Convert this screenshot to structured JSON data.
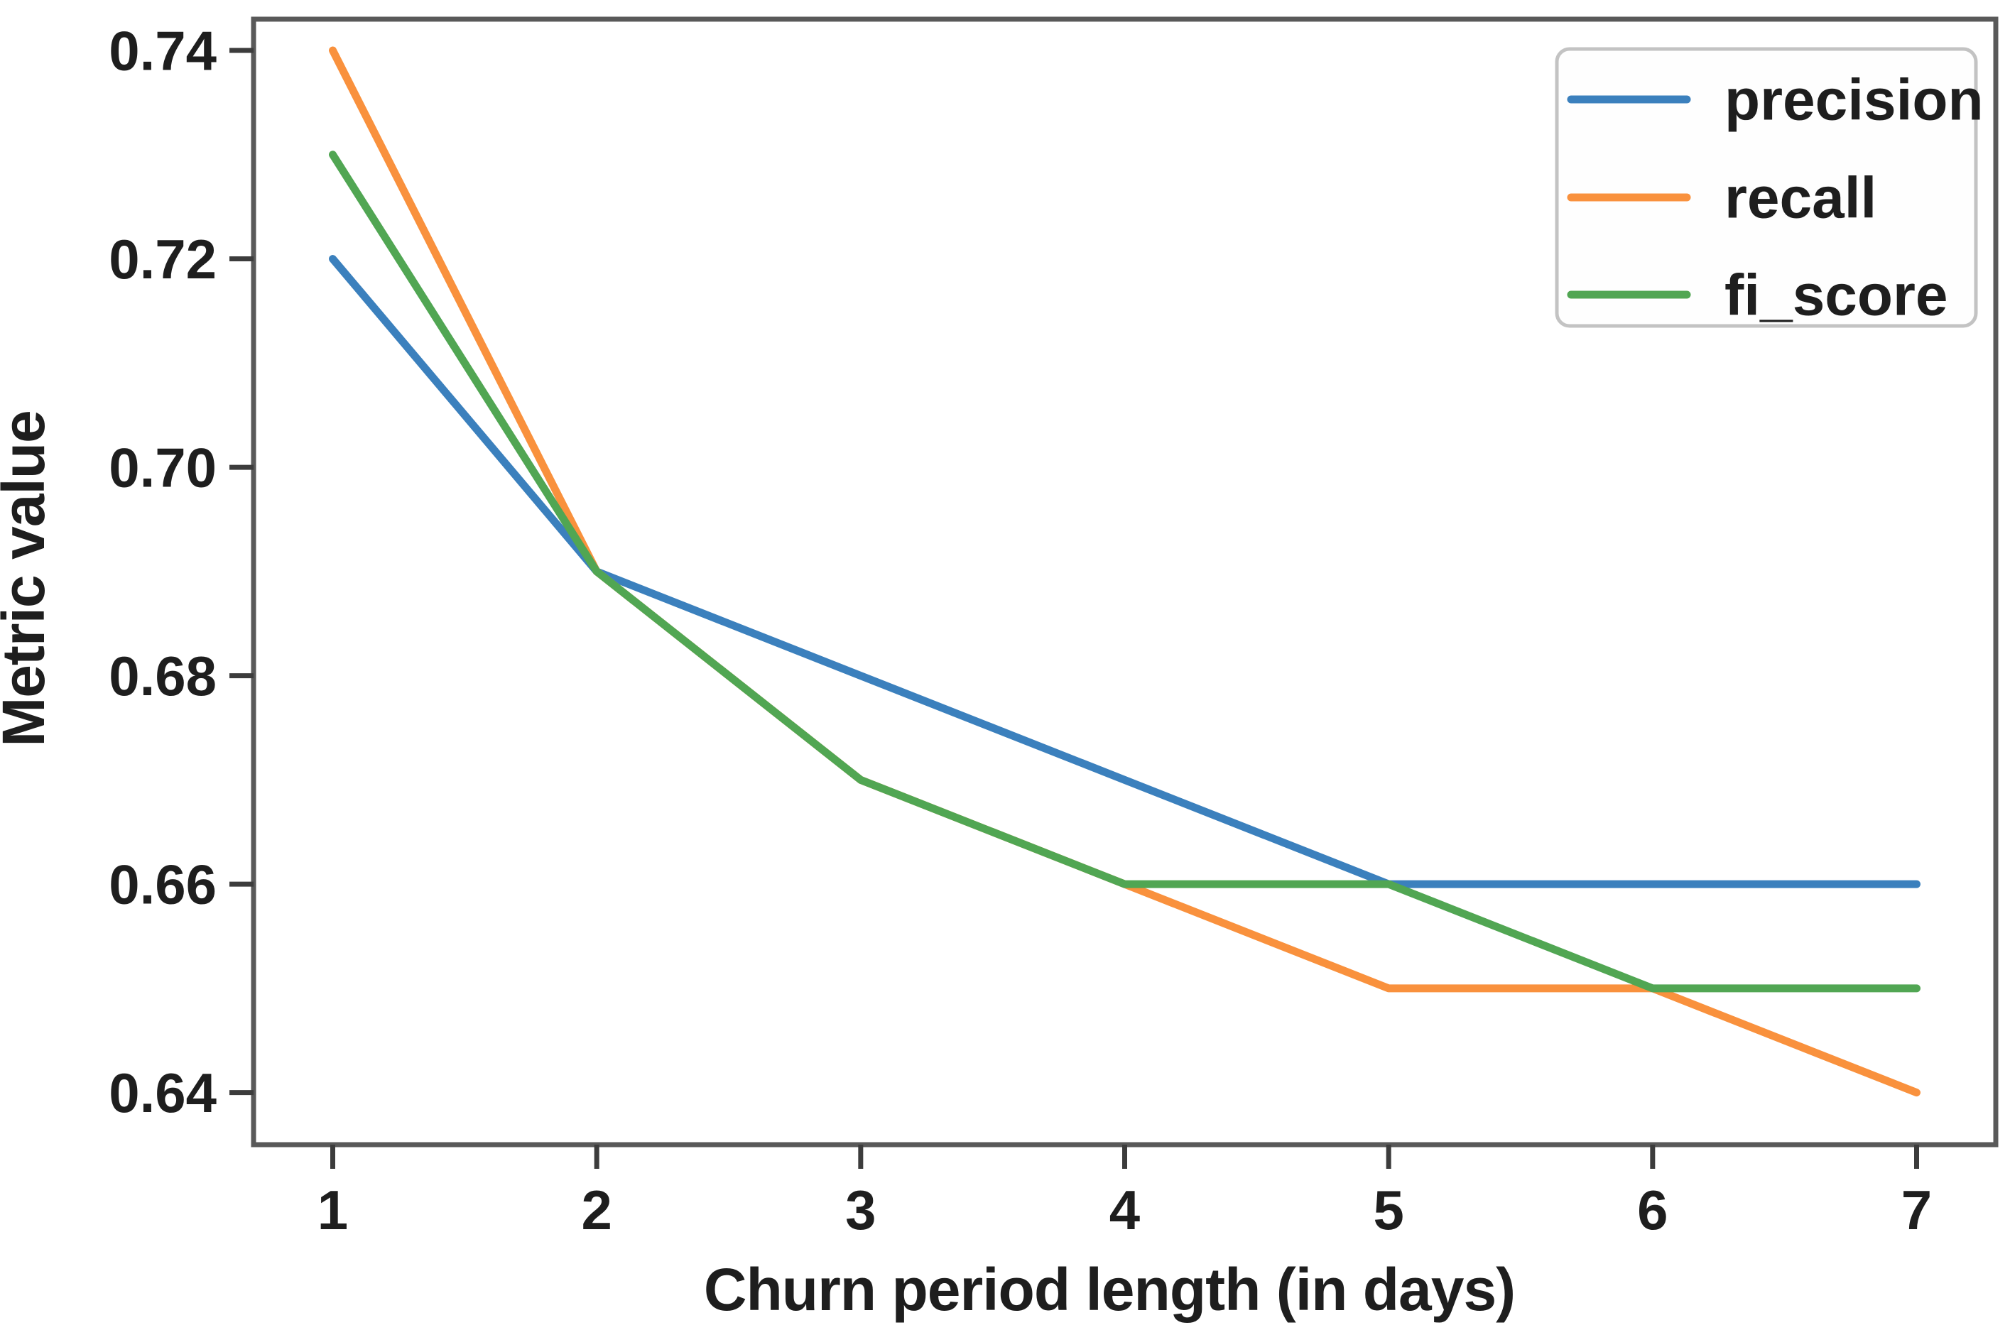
{
  "chart_data": {
    "type": "line",
    "title": "",
    "xlabel": "Churn period length (in days)",
    "ylabel": "Metric value",
    "x": [
      1,
      2,
      3,
      4,
      5,
      6,
      7
    ],
    "xtick_labels": [
      "1",
      "2",
      "3",
      "4",
      "5",
      "6",
      "7"
    ],
    "yticks": [
      0.64,
      0.66,
      0.68,
      0.7,
      0.72,
      0.74
    ],
    "ytick_labels": [
      "0.64",
      "0.66",
      "0.68",
      "0.70",
      "0.72",
      "0.74"
    ],
    "xlim": [
      0.7,
      7.3
    ],
    "ylim": [
      0.635,
      0.743
    ],
    "grid": false,
    "legend_position": "upper right",
    "series": [
      {
        "name": "precision",
        "color": "#3b80bd",
        "values": [
          0.72,
          0.69,
          0.68,
          0.67,
          0.66,
          0.66,
          0.66
        ]
      },
      {
        "name": "recall",
        "color": "#f9913d",
        "values": [
          0.74,
          0.69,
          0.67,
          0.66,
          0.65,
          0.65,
          0.64
        ]
      },
      {
        "name": "fi_score",
        "color": "#51a653",
        "values": [
          0.73,
          0.69,
          0.67,
          0.66,
          0.66,
          0.65,
          0.65
        ]
      }
    ]
  },
  "colors": {
    "background": "#ffffff",
    "spine": "#595959",
    "tick": "#3c3c3c",
    "text": "#1e1e1e",
    "legend_border": "#c3c3c3",
    "legend_fill": "#fefefe"
  }
}
